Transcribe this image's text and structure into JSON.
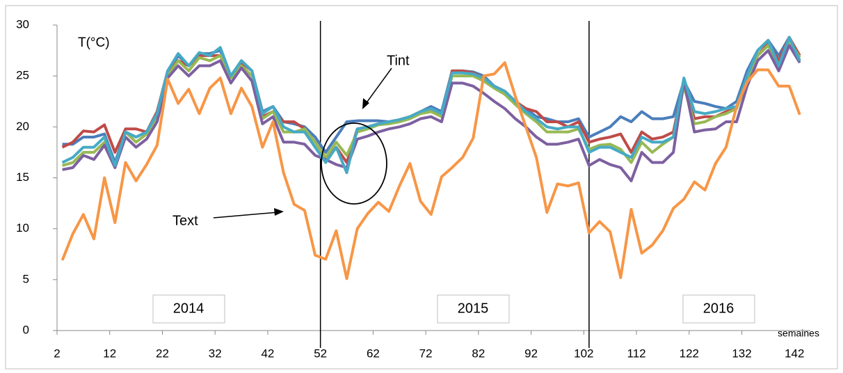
{
  "chart_data": {
    "type": "line",
    "ylabel": "T(°C)",
    "xlabel": "semaines",
    "annotations": [
      "Tint",
      "Text",
      "2014",
      "2015",
      "2016"
    ],
    "xlim": [
      2,
      145
    ],
    "ylim": [
      0,
      30
    ],
    "xticks": [
      2,
      12,
      22,
      32,
      42,
      52,
      62,
      72,
      82,
      92,
      102,
      112,
      122,
      132,
      142
    ],
    "yticks": [
      0,
      5,
      10,
      15,
      20,
      25,
      30
    ],
    "grid": false,
    "vlines": [
      52,
      103
    ],
    "x": [
      3,
      5,
      7,
      9,
      11,
      13,
      15,
      17,
      19,
      21,
      23,
      25,
      27,
      29,
      31,
      33,
      35,
      37,
      39,
      41,
      43,
      45,
      47,
      49,
      51,
      53,
      55,
      57,
      59,
      61,
      63,
      65,
      67,
      69,
      71,
      73,
      75,
      77,
      79,
      81,
      83,
      85,
      87,
      89,
      91,
      93,
      95,
      97,
      99,
      101,
      103,
      105,
      107,
      109,
      111,
      113,
      115,
      117,
      119,
      121,
      123,
      125,
      127,
      129,
      131,
      133,
      135,
      137,
      139,
      141,
      143
    ],
    "series": [
      {
        "color": "#4a7ebb",
        "values": [
          18.3,
          18.3,
          19.0,
          19.0,
          19.3,
          16.5,
          19.5,
          19.0,
          19.5,
          21.5,
          25.3,
          27.0,
          26.0,
          27.2,
          27.2,
          27.5,
          25.0,
          26.5,
          25.5,
          21.5,
          22.0,
          20.5,
          20.3,
          20.0,
          19.0,
          17.5,
          19.0,
          20.5,
          20.6,
          20.6,
          20.6,
          20.5,
          20.7,
          21.0,
          21.5,
          22.0,
          21.5,
          25.5,
          25.5,
          25.4,
          25.0,
          24.0,
          23.5,
          22.5,
          21.8,
          21.0,
          20.8,
          20.5,
          20.5,
          20.8,
          19.0,
          19.5,
          20.0,
          21.0,
          20.5,
          21.5,
          20.8,
          20.8,
          21.0,
          24.5,
          22.5,
          22.3,
          22.0,
          21.8,
          22.5,
          25.5,
          27.5,
          28.5,
          27.0,
          28.8,
          26.5
        ]
      },
      {
        "color": "#be4b48",
        "values": [
          18.0,
          18.5,
          19.6,
          19.5,
          20.2,
          17.5,
          19.8,
          19.8,
          19.5,
          21.5,
          25.5,
          26.5,
          26.0,
          27.0,
          27.0,
          27.0,
          25.0,
          26.3,
          25.5,
          21.0,
          21.5,
          20.5,
          20.5,
          19.8,
          18.5,
          17.0,
          18.0,
          16.5,
          19.8,
          20.0,
          20.3,
          20.5,
          20.7,
          21.0,
          21.5,
          21.8,
          21.0,
          25.5,
          25.5,
          25.3,
          24.8,
          24.0,
          23.5,
          22.5,
          21.8,
          21.5,
          20.5,
          20.5,
          20.0,
          20.5,
          18.5,
          18.8,
          19.0,
          19.3,
          17.5,
          19.5,
          18.8,
          19.0,
          19.5,
          24.5,
          20.8,
          21.0,
          21.0,
          21.5,
          21.8,
          25.0,
          27.0,
          28.2,
          26.5,
          28.8,
          27.0
        ]
      },
      {
        "color": "#98b954",
        "values": [
          16.2,
          16.5,
          17.5,
          17.5,
          18.5,
          16.0,
          19.5,
          18.5,
          19.3,
          21.0,
          25.0,
          26.5,
          25.5,
          26.8,
          26.5,
          27.0,
          24.8,
          26.0,
          25.0,
          20.8,
          21.5,
          19.5,
          19.5,
          19.8,
          18.5,
          17.0,
          18.5,
          17.2,
          19.5,
          19.8,
          20.2,
          20.3,
          20.5,
          20.8,
          21.3,
          21.5,
          21.0,
          25.0,
          25.0,
          25.0,
          24.5,
          23.8,
          23.2,
          22.2,
          21.3,
          20.5,
          19.5,
          19.5,
          19.5,
          19.8,
          17.8,
          18.2,
          18.3,
          17.8,
          16.5,
          18.5,
          17.5,
          18.3,
          19.0,
          24.0,
          20.3,
          20.5,
          21.0,
          21.3,
          21.8,
          24.5,
          27.0,
          28.0,
          26.0,
          28.5,
          26.8
        ]
      },
      {
        "color": "#7d60a0",
        "values": [
          15.8,
          16.0,
          17.2,
          16.8,
          18.2,
          16.0,
          19.0,
          18.0,
          18.8,
          20.5,
          24.8,
          26.0,
          25.0,
          26.0,
          26.0,
          26.5,
          24.3,
          25.8,
          24.5,
          20.3,
          21.0,
          18.5,
          18.5,
          18.3,
          17.2,
          16.8,
          16.3,
          16.0,
          18.8,
          19.1,
          19.5,
          19.8,
          20.0,
          20.3,
          20.8,
          21.0,
          20.5,
          24.3,
          24.3,
          24.0,
          23.3,
          22.5,
          21.8,
          20.8,
          20.0,
          19.0,
          18.3,
          18.3,
          18.5,
          18.8,
          16.2,
          16.8,
          16.3,
          16.0,
          14.7,
          17.5,
          16.5,
          16.5,
          17.5,
          24.5,
          19.5,
          19.7,
          19.8,
          20.5,
          20.5,
          24.0,
          26.5,
          27.5,
          25.5,
          28.0,
          26.3
        ]
      },
      {
        "color": "#46aac5",
        "values": [
          16.5,
          17.0,
          18.0,
          18.0,
          19.0,
          16.2,
          19.5,
          19.0,
          19.5,
          21.3,
          25.5,
          27.2,
          26.0,
          27.3,
          27.0,
          27.8,
          25.0,
          26.5,
          25.5,
          21.3,
          22.0,
          20.0,
          19.5,
          19.5,
          18.0,
          16.5,
          18.0,
          15.5,
          19.8,
          20.0,
          20.3,
          20.5,
          20.7,
          21.0,
          21.5,
          21.8,
          21.3,
          25.3,
          25.3,
          25.2,
          24.8,
          24.0,
          23.5,
          22.5,
          21.5,
          20.8,
          20.0,
          19.8,
          20.0,
          20.0,
          17.5,
          18.0,
          18.0,
          17.5,
          17.0,
          19.0,
          18.5,
          18.5,
          19.0,
          24.8,
          21.5,
          21.3,
          21.5,
          21.8,
          22.0,
          25.0,
          27.5,
          28.5,
          26.0,
          28.8,
          26.5
        ]
      },
      {
        "color": "#f79646",
        "values": [
          6.9,
          9.5,
          11.4,
          9.0,
          15.0,
          10.6,
          16.5,
          14.7,
          16.3,
          18.2,
          24.7,
          22.3,
          23.7,
          21.3,
          23.8,
          24.8,
          21.3,
          23.8,
          22.0,
          18.0,
          20.5,
          15.5,
          12.4,
          11.8,
          7.4,
          7.0,
          9.8,
          5.1,
          10.0,
          11.5,
          12.6,
          11.7,
          14.2,
          16.4,
          12.7,
          11.4,
          15.1,
          16.0,
          17.0,
          18.9,
          25.0,
          25.2,
          26.3,
          23.0,
          20.0,
          17.0,
          11.6,
          14.4,
          14.2,
          14.5,
          9.6,
          10.7,
          9.7,
          5.2,
          11.9,
          7.6,
          8.4,
          9.8,
          12.0,
          12.9,
          14.6,
          13.8,
          16.4,
          18.0,
          22.0,
          24.4,
          25.6,
          25.6,
          24.0,
          24.0,
          21.2
        ]
      }
    ]
  }
}
